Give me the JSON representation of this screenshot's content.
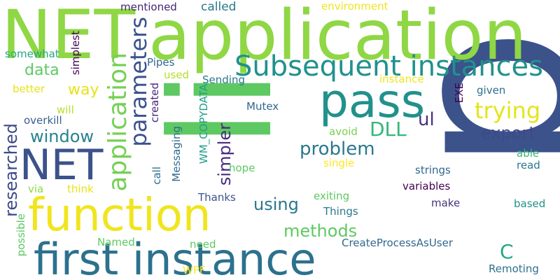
{
  "words": [
    {
      "text": "p",
      "color": "#3b528b"
    },
    {
      "text": "li",
      "color": "#5ec962"
    },
    {
      "text": "application",
      "color": "#8fd744"
    },
    {
      "text": "NET",
      "color": "#8fd744"
    },
    {
      "text": "first instance",
      "color": "#2c718e"
    },
    {
      "text": "function",
      "color": "#f0e51e"
    },
    {
      "text": "pass",
      "color": "#21918c"
    },
    {
      "text": "NET",
      "color": "#3b528b"
    },
    {
      "text": "Subsequent instances",
      "color": "#21918c"
    },
    {
      "text": "application",
      "color": "#75d054"
    },
    {
      "text": "parameters",
      "color": "#3b528b"
    },
    {
      "text": "trying",
      "color": "#e5e419"
    },
    {
      "text": "DLL",
      "color": "#35b779"
    },
    {
      "text": "export",
      "color": "#3e4989"
    },
    {
      "text": "problem",
      "color": "#2a788e"
    },
    {
      "text": "methods",
      "color": "#5ec962"
    },
    {
      "text": "window",
      "color": "#26828e"
    },
    {
      "text": "researched",
      "color": "#3e4989"
    },
    {
      "text": "simpler",
      "color": "#472d7b"
    },
    {
      "text": "using",
      "color": "#2a788e"
    },
    {
      "text": "data",
      "color": "#5ec962"
    },
    {
      "text": "way",
      "color": "#e5e419"
    },
    {
      "text": "ul",
      "color": "#46337e"
    },
    {
      "text": "C",
      "color": "#22a884"
    },
    {
      "text": "mentioned",
      "color": "#482475"
    },
    {
      "text": "called",
      "color": "#2a788e"
    },
    {
      "text": "environment",
      "color": "#f0e51e"
    },
    {
      "text": "simplest",
      "color": "#440154"
    },
    {
      "text": "somewhat",
      "color": "#22a884"
    },
    {
      "text": "Pipes",
      "color": "#31688e"
    },
    {
      "text": "used",
      "color": "#b5de2b"
    },
    {
      "text": "Sending",
      "color": "#2a788e"
    },
    {
      "text": "instance",
      "color": "#f0e51e"
    },
    {
      "text": "EXE",
      "color": "#440154"
    },
    {
      "text": "given",
      "color": "#2c718e"
    },
    {
      "text": "better",
      "color": "#e5e419"
    },
    {
      "text": "will",
      "color": "#b5de2b"
    },
    {
      "text": "overkill",
      "color": "#355f8d"
    },
    {
      "text": "created",
      "color": "#482878"
    },
    {
      "text": "Messaging",
      "color": "#31688e"
    },
    {
      "text": "WM_COPYDATA",
      "color": "#1f9e89"
    },
    {
      "text": "Mutex",
      "color": "#31688e"
    },
    {
      "text": "avoid",
      "color": "#7ad151"
    },
    {
      "text": "single",
      "color": "#fde725"
    },
    {
      "text": "able",
      "color": "#35b779"
    },
    {
      "text": "read",
      "color": "#2a788e"
    },
    {
      "text": "hope",
      "color": "#5ec962"
    },
    {
      "text": "call",
      "color": "#2c718e"
    },
    {
      "text": "strings",
      "color": "#31688e"
    },
    {
      "text": "variables",
      "color": "#440154"
    },
    {
      "text": "via",
      "color": "#8fd744"
    },
    {
      "text": "think",
      "color": "#e5e419"
    },
    {
      "text": "Thanks",
      "color": "#3b528b"
    },
    {
      "text": "exiting",
      "color": "#5ec962"
    },
    {
      "text": "make",
      "color": "#46337e"
    },
    {
      "text": "based",
      "color": "#21918c"
    },
    {
      "text": "Things",
      "color": "#2a788e"
    },
    {
      "text": "possible",
      "color": "#5ec962"
    },
    {
      "text": "Named",
      "color": "#5ec962"
    },
    {
      "text": "need",
      "color": "#5ec962"
    },
    {
      "text": "CreateProcessAsUser",
      "color": "#31688e"
    },
    {
      "text": "WPF",
      "color": "#fde725"
    },
    {
      "text": "Remoting",
      "color": "#2c718e"
    }
  ]
}
